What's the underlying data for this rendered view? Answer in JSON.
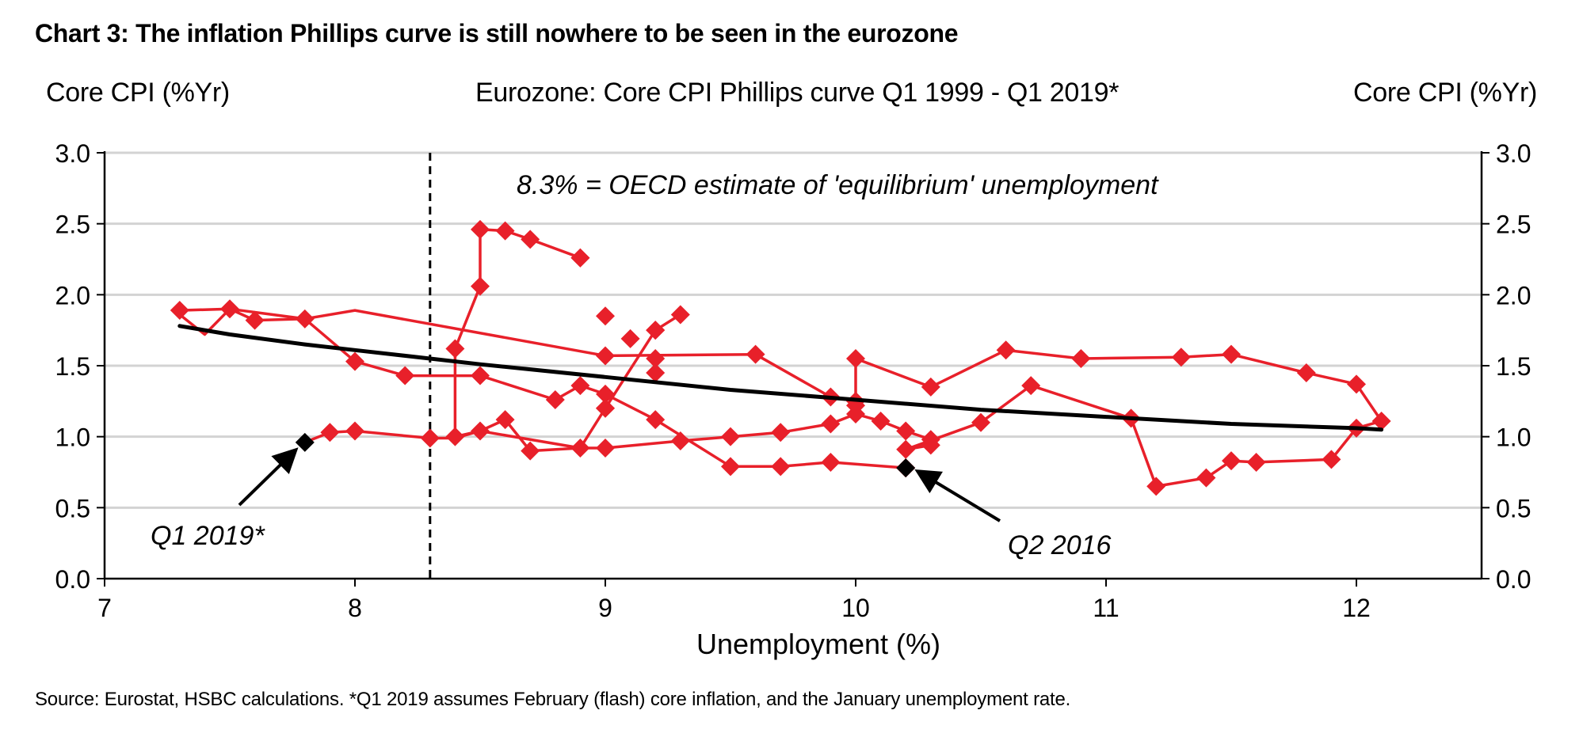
{
  "chart_data": {
    "type": "scatter",
    "title": "Chart 3: The inflation Phillips curve is still nowhere to be seen in the eurozone",
    "subtitle": "Eurozone: Core CPI Phillips curve Q1 1999 - Q1 2019*",
    "ylabel_left": "Core CPI (%Yr)",
    "ylabel_right": "Core CPI (%Yr)",
    "xlabel": "Unemployment (%)",
    "xlim": [
      7,
      12.5
    ],
    "ylim": [
      0,
      3
    ],
    "x_ticks": [
      "7",
      "8",
      "9",
      "10",
      "11",
      "12"
    ],
    "y_ticks": [
      "0.0",
      "0.5",
      "1.0",
      "1.5",
      "2.0",
      "2.5",
      "3.0"
    ],
    "grid": "horizontal",
    "series": [
      {
        "color": "#e8202a",
        "marker": "diamond",
        "points": [
          [
            8.9,
            2.26
          ],
          [
            8.7,
            2.39
          ],
          [
            8.6,
            2.45
          ],
          [
            8.5,
            2.46
          ],
          [
            8.5,
            2.06
          ],
          [
            8.4,
            1.62
          ],
          [
            8.4,
            1.0
          ],
          [
            8.5,
            1.04
          ],
          [
            8.6,
            1.12
          ],
          [
            8.7,
            0.9
          ],
          [
            8.9,
            0.92
          ],
          [
            9.0,
            0.92
          ],
          [
            9.3,
            0.97
          ],
          [
            9.5,
            1.0
          ],
          [
            9.7,
            1.03
          ],
          [
            9.9,
            1.09
          ],
          [
            10.0,
            1.16
          ],
          [
            10.1,
            1.11
          ],
          [
            10.2,
            1.04
          ],
          [
            10.3,
            0.98
          ],
          [
            10.3,
            0.94
          ],
          [
            10.2,
            0.91
          ],
          [
            10.5,
            1.1
          ],
          [
            10.7,
            1.36
          ],
          [
            11.1,
            1.13
          ],
          [
            11.2,
            0.65
          ],
          [
            11.4,
            0.71
          ],
          [
            11.5,
            0.83
          ],
          [
            11.6,
            0.82
          ],
          [
            11.9,
            0.84
          ],
          [
            12.0,
            1.06
          ],
          [
            12.1,
            1.11
          ],
          [
            12.0,
            1.37
          ],
          [
            11.8,
            1.45
          ],
          [
            11.5,
            1.58
          ],
          [
            11.3,
            1.56
          ],
          [
            10.9,
            1.55
          ],
          [
            10.6,
            1.61
          ],
          [
            10.3,
            1.35
          ],
          [
            10.0,
            1.55
          ],
          [
            10.0,
            1.25
          ],
          [
            9.9,
            1.28
          ],
          [
            9.6,
            1.58
          ],
          [
            9.0,
            1.57
          ],
          [
            7.3,
            1.89
          ],
          [
            7.5,
            1.9
          ],
          [
            7.6,
            1.82
          ],
          [
            7.8,
            1.83
          ],
          [
            8.0,
            1.53
          ],
          [
            8.2,
            1.43
          ],
          [
            8.5,
            1.43
          ],
          [
            8.8,
            1.26
          ],
          [
            8.9,
            1.36
          ],
          [
            9.0,
            1.3
          ],
          [
            9.0,
            1.2
          ],
          [
            9.2,
            1.12
          ],
          [
            9.5,
            0.79
          ],
          [
            9.7,
            0.79
          ],
          [
            9.9,
            0.82
          ],
          [
            10.2,
            0.78
          ],
          [
            10.2,
            0.78
          ],
          [
            10.0,
            1.22
          ],
          [
            9.2,
            1.45
          ],
          [
            9.2,
            1.55
          ],
          [
            9.3,
            1.86
          ],
          [
            9.2,
            1.75
          ],
          [
            9.1,
            1.69
          ],
          [
            9.0,
            1.85
          ],
          [
            8.9,
            2.26
          ]
        ],
        "connect": [
          [
            8.9,
            2.26
          ],
          [
            8.7,
            2.39
          ],
          [
            8.6,
            2.45
          ],
          [
            8.5,
            2.46
          ],
          [
            8.5,
            2.06
          ],
          [
            8.4,
            1.62
          ],
          [
            8.4,
            1.0
          ],
          [
            8.5,
            1.04
          ],
          [
            8.6,
            1.12
          ],
          [
            8.7,
            0.9
          ],
          [
            8.9,
            0.92
          ],
          [
            9.0,
            0.92
          ],
          [
            9.3,
            0.97
          ],
          [
            9.5,
            1.0
          ],
          [
            9.7,
            1.03
          ],
          [
            9.9,
            1.09
          ],
          [
            10.0,
            1.16
          ],
          [
            10.1,
            1.11
          ],
          [
            10.2,
            1.04
          ],
          [
            10.3,
            0.98
          ],
          [
            10.3,
            0.94
          ],
          [
            10.2,
            0.91
          ],
          [
            10.5,
            1.1
          ],
          [
            10.7,
            1.36
          ],
          [
            11.1,
            1.13
          ],
          [
            11.2,
            0.65
          ],
          [
            11.4,
            0.71
          ],
          [
            11.5,
            0.83
          ],
          [
            11.6,
            0.82
          ],
          [
            11.9,
            0.84
          ],
          [
            12.0,
            1.06
          ],
          [
            12.1,
            1.11
          ],
          [
            12.0,
            1.37
          ],
          [
            11.8,
            1.45
          ],
          [
            11.5,
            1.58
          ],
          [
            11.3,
            1.56
          ],
          [
            10.9,
            1.55
          ],
          [
            10.6,
            1.61
          ],
          [
            10.3,
            1.35
          ],
          [
            10.0,
            1.55
          ],
          [
            10.0,
            1.25
          ],
          [
            9.9,
            1.28
          ],
          [
            9.6,
            1.58
          ],
          [
            9.0,
            1.57
          ],
          [
            8.0,
            1.89
          ],
          [
            7.8,
            1.83
          ],
          [
            7.6,
            1.82
          ],
          [
            7.5,
            1.9
          ],
          [
            7.3,
            1.89
          ],
          [
            7.3,
            1.86
          ],
          [
            7.4,
            1.72
          ],
          [
            7.5,
            1.9
          ],
          [
            7.8,
            1.83
          ],
          [
            8.0,
            1.53
          ],
          [
            8.2,
            1.43
          ],
          [
            8.5,
            1.43
          ],
          [
            8.8,
            1.26
          ],
          [
            8.9,
            1.36
          ],
          [
            9.0,
            1.3
          ],
          [
            9.2,
            1.12
          ],
          [
            9.5,
            0.79
          ],
          [
            9.7,
            0.79
          ],
          [
            9.9,
            0.82
          ],
          [
            10.2,
            0.78
          ]
        ]
      },
      {
        "color": "#e8202a",
        "marker": "diamond",
        "points": [
          [
            8.3,
            0.99
          ],
          [
            8.0,
            1.04
          ],
          [
            7.9,
            1.03
          ],
          [
            9.0,
            1.2
          ],
          [
            9.2,
            1.75
          ]
        ],
        "connect": [
          [
            7.8,
            0.96
          ],
          [
            7.9,
            1.03
          ],
          [
            8.0,
            1.04
          ],
          [
            8.3,
            0.99
          ],
          [
            8.4,
            0.99
          ],
          [
            8.5,
            1.04
          ],
          [
            8.9,
            0.92
          ],
          [
            9.0,
            1.2
          ],
          [
            9.2,
            1.75
          ],
          [
            9.3,
            1.86
          ]
        ]
      }
    ],
    "highlight_points": [
      {
        "x": 7.8,
        "y": 0.96,
        "color": "#000000",
        "label": "Q1 2019*"
      },
      {
        "x": 10.2,
        "y": 0.78,
        "color": "#000000",
        "label": "Q2 2016"
      }
    ],
    "trend_curve": {
      "color": "#000000",
      "x": [
        7.3,
        7.5,
        7.8,
        8.0,
        8.3,
        8.5,
        9.0,
        9.5,
        10.0,
        10.5,
        11.0,
        11.5,
        12.0,
        12.1
      ],
      "y": [
        1.78,
        1.72,
        1.65,
        1.61,
        1.55,
        1.51,
        1.42,
        1.33,
        1.26,
        1.19,
        1.14,
        1.09,
        1.06,
        1.05
      ]
    },
    "reference_line": {
      "x": 8.3,
      "style": "dashed",
      "label": "8.3% = OECD estimate of 'equilibrium' unemployment"
    }
  },
  "source": "Source: Eurostat, HSBC calculations. *Q1 2019 assumes February (flash) core inflation, and the January unemployment rate."
}
